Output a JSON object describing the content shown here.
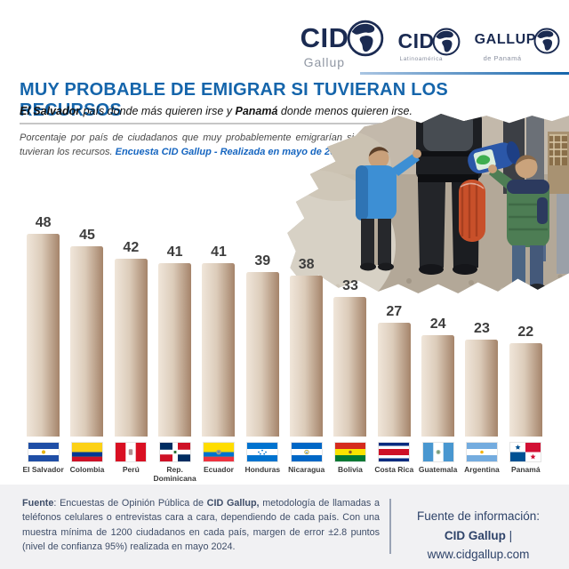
{
  "header": {
    "logos": [
      {
        "main": "CID",
        "sub": "Gallup"
      },
      {
        "main": "CID",
        "sub": "Latinoamérica"
      },
      {
        "main": "GALLUP",
        "sub": "de Panamá"
      }
    ]
  },
  "title": "MUY PROBABLE DE EMIGRAR SI TUVIERAN LOS RECURSOS",
  "subtitle": {
    "bold1": "El Salvador",
    "mid": " país donde más quieren irse y ",
    "bold2": "Panamá",
    "end": " donde menos quieren irse."
  },
  "description": {
    "text": "Porcentaje por país de ciudadanos que muy probablemente emigrarían si tuvieran los recursos. ",
    "highlight": "Encuesta CID Gallup - Realizada en mayo de 2024"
  },
  "chart_data": {
    "type": "bar",
    "title": "Muy probable de emigrar si tuvieran los recursos",
    "categories": [
      "El Salvador",
      "Colombia",
      "Perú",
      "Rep.\nDominicana",
      "Ecuador",
      "Honduras",
      "Nicaragua",
      "Bolivia",
      "Costa Rica",
      "Guatemala",
      "Argentina",
      "Panamá"
    ],
    "values": [
      48,
      45,
      42,
      41,
      41,
      39,
      38,
      33,
      27,
      24,
      23,
      22
    ],
    "flags": [
      "flag-el-salvador",
      "flag-colombia",
      "flag-peru",
      "flag-rep-dominicana",
      "flag-ecuador",
      "flag-honduras",
      "flag-nicaragua",
      "flag-bolivia",
      "flag-costa-rica",
      "flag-guatemala",
      "flag-argentina",
      "flag-panama"
    ],
    "unit": "%",
    "ylim": [
      0,
      48
    ],
    "grid": false,
    "data_labels": true,
    "bar_color_gradient": [
      "#f0e6da",
      "#a5846a"
    ],
    "label_color": "#3d3d3d"
  },
  "footer": {
    "left": {
      "bold1": "Fuente",
      "seg1": ": Encuestas de Opinión Pública de ",
      "bold2": "CID Gallup,",
      "seg2": " metodología de llamadas a teléfonos celulares o entrevistas cara a cara, dependiendo de cada país. Con una muestra mínima de 1200 ciudadanos en cada país, margen de error ±2.8 puntos (nivel de confianza 95%) realizada en mayo 2024."
    },
    "right": {
      "line1": "Fuente de información:",
      "brand": "CID Gallup",
      "sep_url": " | www.cidgallup.com"
    }
  },
  "colors": {
    "title_blue": "#1565ab",
    "highlight_blue": "#1565c0",
    "logo_navy": "#1b2b52",
    "footer_bg": "#f1f1f3",
    "footer_text": "#3e4d68"
  }
}
